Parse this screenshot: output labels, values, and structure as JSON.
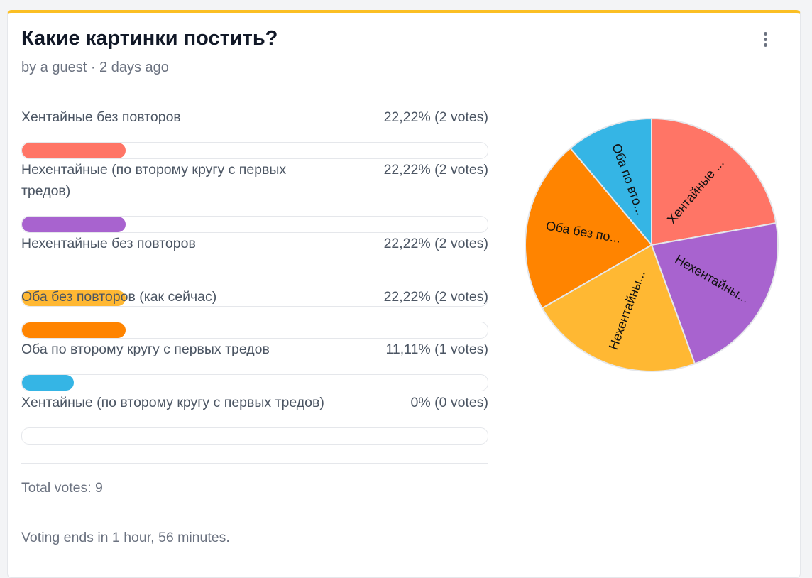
{
  "poll": {
    "title": "Какие картинки постить?",
    "meta": "by a guest · 2 days ago",
    "total": "Total votes: 9",
    "ends": "Voting ends in 1 hour, 56 minutes.",
    "accent_color": "#fbbf24",
    "menu_icon": "more-vertical-icon",
    "options": [
      {
        "label": "Хентайные без повторов",
        "pct": "22,22% (2 votes)",
        "share": 0.2222,
        "color": "#ff7566"
      },
      {
        "label": "Нехентайные (по второму кругу с первых тредов)",
        "pct": "22,22% (2 votes)",
        "share": 0.2222,
        "color": "#a863cf"
      },
      {
        "label": "Нехентайные без повторов",
        "pct": "22,22% (2 votes)",
        "share": 0.2222,
        "color": "#ffb833"
      },
      {
        "label": "Оба без повторов (как сейчас)",
        "pct": "22,22% (2 votes)",
        "share": 0.2222,
        "color": "#ff8400"
      },
      {
        "label": "Оба по второму кругу с первых тредов",
        "pct": "11,11% (1 votes)",
        "share": 0.1111,
        "color": "#35b5e5"
      },
      {
        "label": "Хентайные (по второму кругу с первых тредов)",
        "pct": "0% (0 votes)",
        "share": 0,
        "color": "#ff7566"
      }
    ]
  },
  "chart_data": {
    "type": "pie",
    "categories": [
      "Хентайные ...",
      "Нехентайны...",
      "Нехентайны...",
      "Оба без по...",
      "Оба по вто..."
    ],
    "values": [
      2,
      2,
      2,
      2,
      1
    ],
    "colors": [
      "#ff7566",
      "#a863cf",
      "#ffb833",
      "#ff8400",
      "#35b5e5"
    ]
  }
}
